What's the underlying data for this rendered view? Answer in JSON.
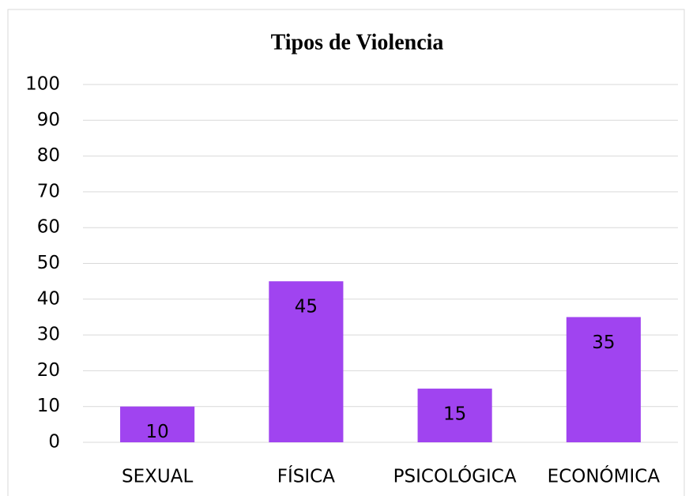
{
  "chart_data": {
    "type": "bar",
    "title": "Tipos de Violencia",
    "categories": [
      "SEXUAL",
      "FÍSICA",
      "PSICOLÓGICA",
      "ECONÓMICA"
    ],
    "values": [
      10,
      45,
      15,
      35
    ],
    "color": "#a044f0",
    "ylim": [
      0,
      100
    ],
    "yticks": [
      0,
      10,
      20,
      30,
      40,
      50,
      60,
      70,
      80,
      90,
      100
    ],
    "grid": true
  }
}
